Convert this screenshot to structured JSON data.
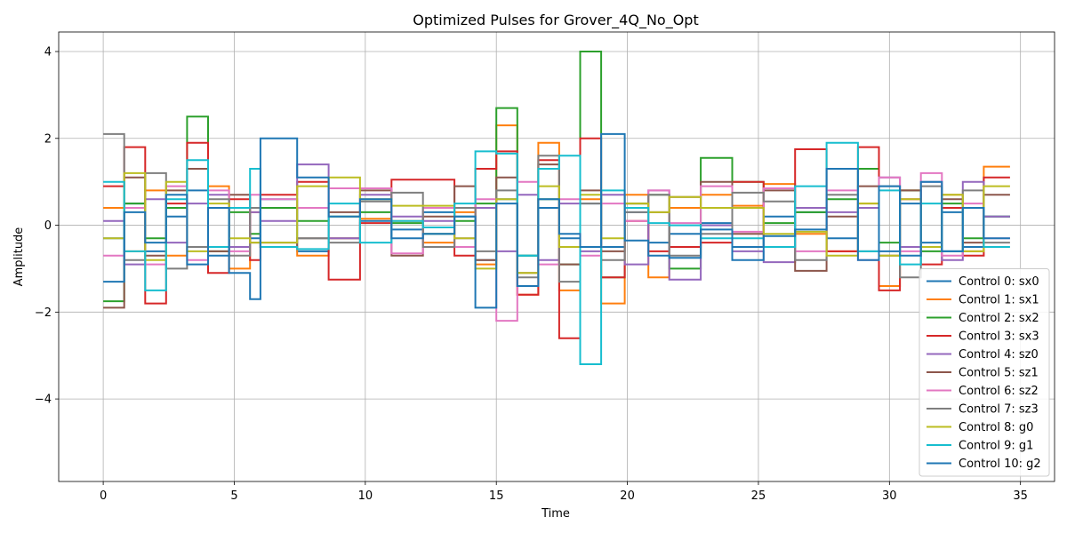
{
  "chart_data": {
    "type": "line",
    "drawstyle": "steps-post",
    "title": "Optimized Pulses for Grover_4Q_No_Opt",
    "xlabel": "Time",
    "ylabel": "Amplitude",
    "xlim": [
      -1.7,
      36.3
    ],
    "ylim": [
      -5.9,
      4.45
    ],
    "xticks": [
      0,
      5,
      10,
      15,
      20,
      25,
      30,
      35
    ],
    "xtick_labels": [
      "0",
      "5",
      "10",
      "15",
      "20",
      "25",
      "30",
      "35"
    ],
    "yticks": [
      -4,
      -2,
      0,
      2,
      4
    ],
    "ytick_labels": [
      "−4",
      "−2",
      "0",
      "2",
      "4"
    ],
    "grid": true,
    "legend_position": "lower right",
    "segments": [
      0,
      0.8,
      1.6,
      2.4,
      3.2,
      4.0,
      4.8,
      5.6,
      6.0,
      7.4,
      8.6,
      9.8,
      11.0,
      12.2,
      13.4,
      14.2,
      15.0,
      15.8,
      16.6,
      17.4,
      18.2,
      19.0,
      19.9,
      20.8,
      21.6,
      22.8,
      24.0,
      25.2,
      26.4,
      27.6,
      28.8,
      29.6,
      30.4,
      31.2,
      32.0,
      32.8,
      33.6,
      34.6
    ],
    "series": [
      {
        "name": "Control 0: sx0",
        "color": "#1f77b4",
        "values": [
          -0.3,
          0.5,
          -0.6,
          0.2,
          0.8,
          -0.7,
          0.4,
          -0.3,
          0.6,
          -0.6,
          -0.3,
          0.1,
          -0.1,
          0.3,
          0.2,
          -0.8,
          0.6,
          -0.7,
          0.4,
          -0.3,
          0.5,
          -0.5,
          0.3,
          -0.4,
          -0.2,
          0.05,
          -0.5,
          0.2,
          0.3,
          -0.3,
          0.4,
          -0.6,
          0.5,
          -0.4,
          0.3,
          -0.5,
          0.2
        ]
      },
      {
        "name": "Control 1: sx1",
        "color": "#ff7f0e",
        "values": [
          0.4,
          -0.6,
          0.8,
          -0.7,
          -0.5,
          0.9,
          -1.0,
          0.3,
          -0.5,
          -0.7,
          -0.3,
          0.15,
          0.1,
          -0.4,
          0.3,
          -0.9,
          2.3,
          -1.6,
          1.9,
          -1.5,
          0.6,
          -1.8,
          0.7,
          -1.2,
          0.4,
          0.7,
          0.45,
          0.95,
          -0.2,
          -0.6,
          0.5,
          -1.4,
          0.8,
          -0.5,
          0.7,
          -0.6,
          1.35
        ]
      },
      {
        "name": "Control 2: sx2",
        "color": "#2ca02c",
        "values": [
          -1.75,
          0.5,
          -0.3,
          0.4,
          2.5,
          -0.6,
          0.3,
          -0.2,
          0.4,
          0.1,
          0.2,
          0.3,
          0.05,
          -0.2,
          0.1,
          0.5,
          2.7,
          -0.7,
          0.6,
          -0.9,
          4.0,
          -1.2,
          0.5,
          0.7,
          -1.0,
          1.55,
          1.0,
          0.05,
          0.3,
          0.6,
          1.3,
          -0.4,
          0.8,
          -0.6,
          0.5,
          -0.3,
          0.2
        ]
      },
      {
        "name": "Control 3: sx3",
        "color": "#d62728",
        "values": [
          0.9,
          1.8,
          -1.8,
          0.5,
          1.9,
          -1.1,
          0.6,
          -0.8,
          0.7,
          1.0,
          -1.25,
          0.05,
          1.05,
          1.05,
          -0.7,
          1.3,
          1.7,
          -1.6,
          1.5,
          -2.6,
          2.0,
          -1.2,
          0.1,
          -0.6,
          -0.5,
          -0.4,
          1.0,
          -0.5,
          1.75,
          -0.6,
          1.8,
          -1.5,
          0.6,
          -0.9,
          0.4,
          -0.7,
          1.1
        ]
      },
      {
        "name": "Control 4: sz0",
        "color": "#9467bd",
        "values": [
          0.1,
          -0.9,
          0.6,
          -0.4,
          0.5,
          0.7,
          -0.5,
          0.3,
          0.1,
          1.4,
          -0.3,
          0.7,
          0.2,
          0.1,
          -0.3,
          0.4,
          -0.6,
          0.7,
          -0.8,
          0.5,
          -0.6,
          0.7,
          -0.9,
          0.8,
          -1.25,
          0.0,
          -0.6,
          -0.85,
          0.4,
          0.3,
          0.4,
          1.1,
          -0.5,
          1.0,
          -0.8,
          1.0,
          0.2
        ]
      },
      {
        "name": "Control 5: sz1",
        "color": "#8c564b",
        "values": [
          -1.9,
          1.1,
          -0.7,
          0.8,
          1.3,
          -0.6,
          0.7,
          -0.4,
          -0.5,
          -0.3,
          0.3,
          0.8,
          -0.7,
          0.2,
          0.9,
          -0.8,
          1.1,
          -1.1,
          1.4,
          -0.9,
          0.8,
          -0.6,
          0.5,
          0.3,
          0.65,
          1.0,
          -0.2,
          0.8,
          -1.05,
          0.2,
          0.9,
          -0.7,
          0.8,
          -0.5,
          0.6,
          -0.4,
          0.7
        ]
      },
      {
        "name": "Control 6: sz2",
        "color": "#e377c2",
        "values": [
          -0.7,
          0.4,
          -0.9,
          0.9,
          -0.8,
          0.8,
          -0.6,
          0.7,
          0.6,
          0.4,
          0.85,
          0.85,
          -0.65,
          0.4,
          -0.5,
          0.6,
          -2.2,
          1.0,
          -0.9,
          0.6,
          -0.7,
          0.5,
          0.1,
          0.8,
          0.05,
          0.9,
          -0.15,
          0.85,
          -0.6,
          0.8,
          -0.8,
          1.1,
          -0.6,
          1.2,
          -0.7,
          0.5,
          -0.3
        ]
      },
      {
        "name": "Control 7: sz3",
        "color": "#7f7f7f",
        "values": [
          2.1,
          -0.8,
          1.2,
          -1.0,
          -0.5,
          0.6,
          -0.7,
          0.4,
          -0.4,
          -0.3,
          -0.4,
          0.55,
          0.75,
          -0.5,
          0.4,
          -0.6,
          0.8,
          -1.2,
          1.6,
          -1.3,
          0.5,
          -0.8,
          0.3,
          0.7,
          -0.7,
          -0.2,
          0.75,
          0.55,
          -0.8,
          0.7,
          -0.6,
          0.9,
          -1.2,
          0.9,
          -0.6,
          0.8,
          -0.4
        ]
      },
      {
        "name": "Control 8: g0",
        "color": "#bcbd22",
        "values": [
          -0.3,
          1.2,
          -0.8,
          1.0,
          -0.6,
          0.5,
          -0.3,
          -0.4,
          -0.4,
          0.9,
          1.1,
          0.6,
          0.45,
          0.45,
          -0.3,
          -1.0,
          0.6,
          -1.1,
          0.9,
          -0.5,
          0.7,
          -0.3,
          0.5,
          0.3,
          0.65,
          0.4,
          0.4,
          -0.2,
          -0.15,
          -0.7,
          0.5,
          -0.7,
          0.6,
          -0.5,
          0.7,
          -0.6,
          0.9
        ]
      },
      {
        "name": "Control 9: g1",
        "color": "#17becf",
        "values": [
          1.0,
          -0.6,
          -1.5,
          0.6,
          1.5,
          -0.5,
          0.4,
          1.3,
          -0.5,
          -0.55,
          0.5,
          -0.4,
          0.1,
          -0.05,
          0.5,
          1.7,
          1.65,
          -0.7,
          1.3,
          1.6,
          -3.2,
          0.8,
          0.4,
          0.05,
          0.0,
          -0.3,
          -0.3,
          -0.5,
          0.9,
          1.9,
          -0.6,
          0.8,
          -0.9,
          0.5,
          -0.6,
          0.4,
          -0.5
        ]
      },
      {
        "name": "Control 10: g2",
        "color": "#1f77b4",
        "values": [
          -1.3,
          0.3,
          -0.4,
          0.7,
          -0.9,
          0.4,
          -1.1,
          -1.7,
          2.0,
          1.1,
          0.2,
          0.6,
          -0.3,
          -0.2,
          0.2,
          -1.9,
          0.5,
          -1.4,
          0.6,
          -0.2,
          -0.5,
          2.1,
          -0.35,
          -0.7,
          -0.75,
          -0.1,
          -0.8,
          -0.25,
          -0.1,
          1.3,
          -0.8,
          0.9,
          -0.7,
          1.0,
          -0.6,
          0.4,
          -0.3
        ]
      }
    ]
  }
}
